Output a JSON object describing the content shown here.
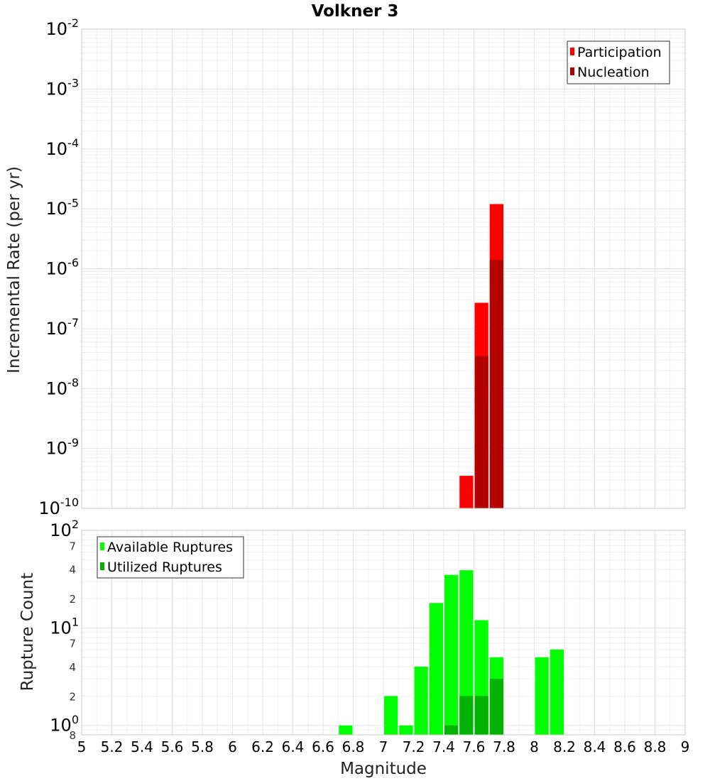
{
  "title": "Volkner 3",
  "colors": {
    "participation": "#ff0000",
    "nucleation": "#b30000",
    "available": "#00ff00",
    "utilized": "#00b300",
    "grid": "#e4e4e4",
    "frame": "#c8c8c8"
  },
  "chart_data": [
    {
      "type": "bar",
      "panel": "top",
      "title": "Volkner 3",
      "xlabel": "",
      "ylabel": "Incremental Rate (per yr)",
      "xlim": [
        5,
        9
      ],
      "ylim": [
        1e-10,
        0.01
      ],
      "y_scale": "log",
      "bar_width": 0.1,
      "grid": true,
      "legend_position": "top-right",
      "y_tick_labels": [
        {
          "base": "10",
          "exp": "-10",
          "value": 1e-10
        },
        {
          "base": "10",
          "exp": "-9",
          "value": 1e-09
        },
        {
          "base": "10",
          "exp": "-8",
          "value": 1e-08
        },
        {
          "base": "10",
          "exp": "-7",
          "value": 1e-07
        },
        {
          "base": "10",
          "exp": "-6",
          "value": 1e-06
        },
        {
          "base": "10",
          "exp": "-5",
          "value": 1e-05
        },
        {
          "base": "10",
          "exp": "-4",
          "value": 0.0001
        },
        {
          "base": "10",
          "exp": "-3",
          "value": 0.001
        },
        {
          "base": "10",
          "exp": "-2",
          "value": 0.01
        }
      ],
      "series": [
        {
          "name": "Participation",
          "color": "#ff0000",
          "x": [
            7.55,
            7.65,
            7.75
          ],
          "values": [
            3.5e-10,
            2.7e-07,
            1.2e-05
          ]
        },
        {
          "name": "Nucleation",
          "color": "#b30000",
          "x": [
            7.65,
            7.75
          ],
          "values": [
            3.5e-08,
            1.4e-06
          ]
        }
      ]
    },
    {
      "type": "bar",
      "panel": "bottom",
      "xlabel": "Magnitude",
      "ylabel": "Rupture Count",
      "xlim": [
        5,
        9
      ],
      "ylim": [
        0.8,
        100
      ],
      "y_scale": "log",
      "bar_width": 0.1,
      "grid": true,
      "legend_position": "top-left",
      "x_tick_labels": [
        "5",
        "5.2",
        "5.4",
        "5.6",
        "5.8",
        "6",
        "6.2",
        "6.4",
        "6.6",
        "6.8",
        "7",
        "7.2",
        "7.4",
        "7.6",
        "7.8",
        "8",
        "8.2",
        "8.4",
        "8.6",
        "8.8",
        "9"
      ],
      "y_tick_labels": [
        {
          "base": "10",
          "exp": "0",
          "value": 1
        },
        {
          "base": "10",
          "exp": "1",
          "value": 10
        },
        {
          "base": "10",
          "exp": "2",
          "value": 100
        }
      ],
      "y_minor_labels": [
        {
          "label": "8",
          "value": 0.8
        },
        {
          "label": "2",
          "value": 2
        },
        {
          "label": "4",
          "value": 4
        },
        {
          "label": "7",
          "value": 7
        },
        {
          "label": "2",
          "value": 20
        },
        {
          "label": "4",
          "value": 40
        },
        {
          "label": "7",
          "value": 70
        }
      ],
      "series": [
        {
          "name": "Available Ruptures",
          "color": "#00ff00",
          "x": [
            6.75,
            7.05,
            7.15,
            7.25,
            7.35,
            7.45,
            7.55,
            7.65,
            7.75,
            8.05,
            8.15
          ],
          "values": [
            1,
            2,
            1,
            4,
            18,
            35,
            39,
            12,
            5,
            5,
            6
          ]
        },
        {
          "name": "Utilized Ruptures",
          "color": "#00b300",
          "x": [
            7.45,
            7.55,
            7.65,
            7.75
          ],
          "values": [
            1,
            2,
            2,
            3
          ]
        }
      ]
    }
  ]
}
